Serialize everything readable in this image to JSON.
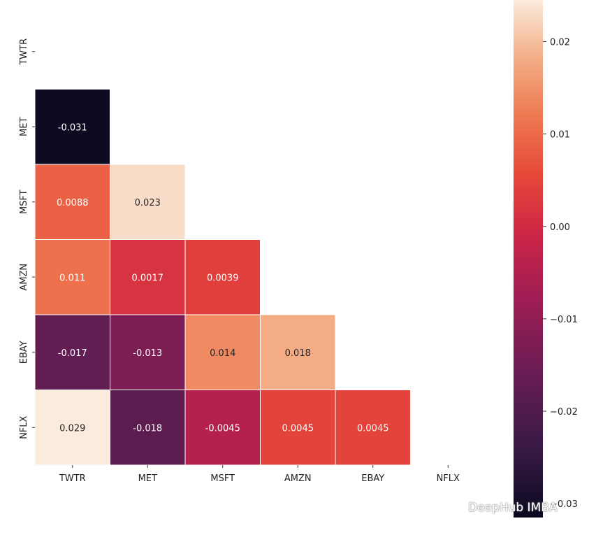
{
  "chart_data": {
    "type": "heatmap",
    "mask": "upper-triangle",
    "labels": [
      "TWTR",
      "MET",
      "MSFT",
      "AMZN",
      "EBAY",
      "NFLX"
    ],
    "cells": [
      {
        "row": "MET",
        "col": "TWTR",
        "value": -0.031,
        "text": "-0.031"
      },
      {
        "row": "MSFT",
        "col": "TWTR",
        "value": 0.0088,
        "text": "0.0088"
      },
      {
        "row": "MSFT",
        "col": "MET",
        "value": 0.023,
        "text": "0.023"
      },
      {
        "row": "AMZN",
        "col": "TWTR",
        "value": 0.011,
        "text": "0.011"
      },
      {
        "row": "AMZN",
        "col": "MET",
        "value": 0.0017,
        "text": "0.0017"
      },
      {
        "row": "AMZN",
        "col": "MSFT",
        "value": 0.0039,
        "text": "0.0039"
      },
      {
        "row": "EBAY",
        "col": "TWTR",
        "value": -0.017,
        "text": "-0.017"
      },
      {
        "row": "EBAY",
        "col": "MET",
        "value": -0.013,
        "text": "-0.013"
      },
      {
        "row": "EBAY",
        "col": "MSFT",
        "value": 0.014,
        "text": "0.014"
      },
      {
        "row": "EBAY",
        "col": "AMZN",
        "value": 0.018,
        "text": "0.018"
      },
      {
        "row": "NFLX",
        "col": "TWTR",
        "value": 0.029,
        "text": "0.029"
      },
      {
        "row": "NFLX",
        "col": "MET",
        "value": -0.018,
        "text": "-0.018"
      },
      {
        "row": "NFLX",
        "col": "MSFT",
        "value": -0.0045,
        "text": "-0.0045"
      },
      {
        "row": "NFLX",
        "col": "AMZN",
        "value": 0.0045,
        "text": "0.0045"
      },
      {
        "row": "NFLX",
        "col": "EBAY",
        "value": 0.0045,
        "text": "0.0045"
      }
    ],
    "colorbar": {
      "range": [
        -0.0315,
        0.0245
      ],
      "ticks": [
        0.02,
        0.01,
        0.0,
        -0.01,
        -0.02,
        -0.03
      ],
      "tick_labels": [
        "0.02",
        "0.01",
        "0.00",
        "−0.01",
        "−0.02",
        "−0.03"
      ],
      "colormap": "rocket"
    }
  },
  "watermark": {
    "text": "DeepHub IMBA",
    "icon": "wechat-icon"
  }
}
